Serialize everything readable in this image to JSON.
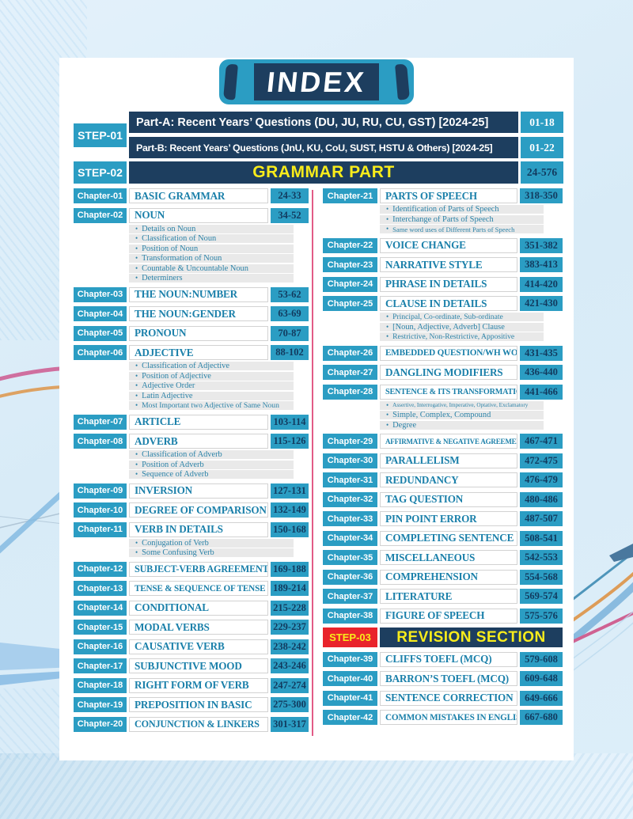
{
  "colors": {
    "cyan": "#2b9dc3",
    "navy": "#1d3e5f",
    "title_text": "#1b80aa",
    "page_text": "#123a5e",
    "sub_bg": "#e9e9e9",
    "sub_text": "#2c83a8",
    "divider_pink": "#e25b87",
    "step3_red": "#e9232b",
    "yellow": "#f8ec1b",
    "white": "#ffffff"
  },
  "icons": {
    "bullet": "•"
  },
  "banner": {
    "title": "INDEX"
  },
  "header": {
    "step1_label": "STEP-01",
    "part_a": {
      "text": "Part-A: Recent Years’ Questions (DU, JU, RU, CU, GST) [2024-25]",
      "pages": "01-18"
    },
    "part_b": {
      "text": "Part-B: Recent Years’ Questions (JnU, KU, CoU, SUST, HSTU & Others) [2024-25]",
      "pages": "01-22"
    },
    "step2_label": "STEP-02",
    "step2_title": "GRAMMAR PART",
    "step2_pages": "24-576"
  },
  "columns": {
    "left": [
      {
        "type": "chapter",
        "label": "Chapter-01",
        "title": "BASIC GRAMMAR",
        "pages": "24-33"
      },
      {
        "type": "chapter",
        "label": "Chapter-02",
        "title": "NOUN",
        "pages": "34-52",
        "subs": [
          "Details on Noun",
          "Classification of Noun",
          "Position of Noun",
          "Transformation of Noun",
          "Countable & Uncountable Noun",
          "Determiners"
        ]
      },
      {
        "type": "chapter",
        "label": "Chapter-03",
        "title": "THE NOUN:NUMBER",
        "pages": "53-62"
      },
      {
        "type": "chapter",
        "label": "Chapter-04",
        "title": "THE NOUN:GENDER",
        "pages": "63-69"
      },
      {
        "type": "chapter",
        "label": "Chapter-05",
        "title": "PRONOUN",
        "pages": "70-87"
      },
      {
        "type": "chapter",
        "label": "Chapter-06",
        "title": "ADJECTIVE",
        "pages": "88-102",
        "subs": [
          "Classification of Adjective",
          "Position of Adjective",
          "Adjective Order",
          "Latin Adjective",
          "Most Important two Adjective of Same Noun"
        ]
      },
      {
        "type": "chapter",
        "label": "Chapter-07",
        "title": "ARTICLE",
        "pages": "103-114"
      },
      {
        "type": "chapter",
        "label": "Chapter-08",
        "title": "ADVERB",
        "pages": "115-126",
        "subs": [
          "Classification of Adverb",
          "Position of Adverb",
          "Sequence of Adverb"
        ]
      },
      {
        "type": "chapter",
        "label": "Chapter-09",
        "title": "INVERSION",
        "pages": "127-131"
      },
      {
        "type": "chapter",
        "label": "Chapter-10",
        "title": "DEGREE OF COMPARISON",
        "pages": "132-149"
      },
      {
        "type": "chapter",
        "label": "Chapter-11",
        "title": "VERB IN DETAILS",
        "pages": "150-168",
        "subs": [
          "Conjugation of Verb",
          "Some Confusing Verb"
        ]
      },
      {
        "type": "chapter",
        "label": "Chapter-12",
        "title": "SUBJECT-VERB AGREEMENT",
        "pages": "169-188"
      },
      {
        "type": "chapter",
        "label": "Chapter-13",
        "title": "TENSE & SEQUENCE OF TENSE",
        "pages": "189-214"
      },
      {
        "type": "chapter",
        "label": "Chapter-14",
        "title": "CONDITIONAL",
        "pages": "215-228"
      },
      {
        "type": "chapter",
        "label": "Chapter-15",
        "title": "MODAL VERBS",
        "pages": "229-237"
      },
      {
        "type": "chapter",
        "label": "Chapter-16",
        "title": "CAUSATIVE VERB",
        "pages": "238-242"
      },
      {
        "type": "chapter",
        "label": "Chapter-17",
        "title": "SUBJUNCTIVE MOOD",
        "pages": "243-246"
      },
      {
        "type": "chapter",
        "label": "Chapter-18",
        "title": "RIGHT FORM OF VERB",
        "pages": "247-274"
      },
      {
        "type": "chapter",
        "label": "Chapter-19",
        "title": "PREPOSITION IN BASIC",
        "pages": "275-300"
      },
      {
        "type": "chapter",
        "label": "Chapter-20",
        "title": "CONJUNCTION & LINKERS",
        "pages": "301-317"
      }
    ],
    "right": [
      {
        "type": "chapter",
        "label": "Chapter-21",
        "title": "PARTS OF SPEECH",
        "pages": "318-350",
        "subs": [
          "Identification of Parts of Speech",
          "Interchange of Parts of Speech",
          "Same word uses of Different Parts of Speech"
        ]
      },
      {
        "type": "chapter",
        "label": "Chapter-22",
        "title": "VOICE CHANGE",
        "pages": "351-382"
      },
      {
        "type": "chapter",
        "label": "Chapter-23",
        "title": "NARRATIVE STYLE",
        "pages": "383-413"
      },
      {
        "type": "chapter",
        "label": "Chapter-24",
        "title": "PHRASE IN DETAILS",
        "pages": "414-420"
      },
      {
        "type": "chapter",
        "label": "Chapter-25",
        "title": "CLAUSE IN DETAILS",
        "pages": "421-430",
        "subs": [
          "Principal, Co-ordinate, Sub-ordinate",
          "[Noun, Adjective, Adverb] Clause",
          "Restrictive, Non-Restrictive, Appositive"
        ]
      },
      {
        "type": "chapter",
        "label": "Chapter-26",
        "title": "EMBEDDED QUESTION/WH WORD",
        "pages": "431-435"
      },
      {
        "type": "chapter",
        "label": "Chapter-27",
        "title": "DANGLING MODIFIERS",
        "pages": "436-440"
      },
      {
        "type": "chapter",
        "label": "Chapter-28",
        "title": "SENTENCE & ITS TRANSFORMATION",
        "pages": "441-466",
        "subs": [
          "Assertive, Interrogative, Imperative, Optative, Exclamatory",
          "Simple, Complex, Compound",
          "Degree"
        ]
      },
      {
        "type": "chapter",
        "label": "Chapter-29",
        "title": "AFFIRMATIVE & NEGATIVE AGREEMENT",
        "pages": "467-471"
      },
      {
        "type": "chapter",
        "label": "Chapter-30",
        "title": "PARALLELISM",
        "pages": "472-475"
      },
      {
        "type": "chapter",
        "label": "Chapter-31",
        "title": "REDUNDANCY",
        "pages": "476-479"
      },
      {
        "type": "chapter",
        "label": "Chapter-32",
        "title": "TAG QUESTION",
        "pages": "480-486"
      },
      {
        "type": "chapter",
        "label": "Chapter-33",
        "title": "PIN POINT ERROR",
        "pages": "487-507"
      },
      {
        "type": "chapter",
        "label": "Chapter-34",
        "title": "COMPLETING SENTENCE",
        "pages": "508-541"
      },
      {
        "type": "chapter",
        "label": "Chapter-35",
        "title": "MISCELLANEOUS",
        "pages": "542-553"
      },
      {
        "type": "chapter",
        "label": "Chapter-36",
        "title": "COMPREHENSION",
        "pages": "554-568"
      },
      {
        "type": "chapter",
        "label": "Chapter-37",
        "title": "LITERATURE",
        "pages": "569-574"
      },
      {
        "type": "chapter",
        "label": "Chapter-38",
        "title": "FIGURE OF SPEECH",
        "pages": "575-576"
      },
      {
        "type": "step",
        "label": "STEP-03",
        "title": "REVISION SECTION"
      },
      {
        "type": "chapter",
        "label": "Chapter-39",
        "title": "CLIFFS TOEFL (MCQ)",
        "pages": "579-608"
      },
      {
        "type": "chapter",
        "label": "Chapter-40",
        "title": "BARRON’S TOEFL (MCQ)",
        "pages": "609-648"
      },
      {
        "type": "chapter",
        "label": "Chapter-41",
        "title": "SENTENCE CORRECTION",
        "pages": "649-666"
      },
      {
        "type": "chapter",
        "label": "Chapter-42",
        "title": "COMMON MISTAKES IN ENGLISH",
        "pages": "667-680"
      }
    ]
  }
}
